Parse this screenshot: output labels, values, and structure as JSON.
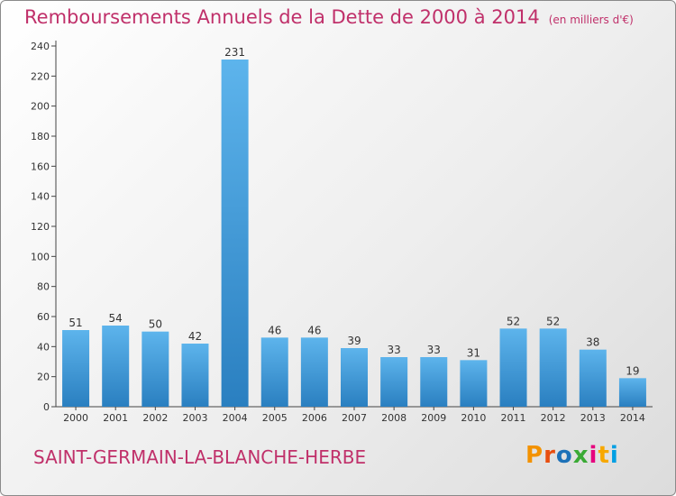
{
  "title": "Remboursements Annuels de la Dette de 2000 à 2014",
  "unit": "(en milliers d'€)",
  "commune": "SAINT-GERMAIN-LA-BLANCHE-HERBE",
  "logo": {
    "text": "Proxiti",
    "colors": [
      "#f39200",
      "#e84e0f",
      "#1d71b8",
      "#3aaa35",
      "#e6007e",
      "#f7a800",
      "#009fe3"
    ]
  },
  "colors": {
    "bar_light": "#5db4ec",
    "bar_dark": "#2a7fc0",
    "text_accent": "#c0306a"
  },
  "chart_data": {
    "type": "bar",
    "title": "Remboursements Annuels de la Dette de 2000 à 2014",
    "categories": [
      "2000",
      "2001",
      "2002",
      "2003",
      "2004",
      "2005",
      "2006",
      "2007",
      "2008",
      "2009",
      "2010",
      "2011",
      "2012",
      "2013",
      "2014"
    ],
    "values": [
      51,
      54,
      50,
      42,
      231,
      46,
      46,
      39,
      33,
      33,
      31,
      52,
      52,
      38,
      19
    ],
    "data_labels": [
      "51",
      "54",
      "50",
      "42",
      "231",
      "46",
      "46",
      "39",
      "33",
      "33",
      "31",
      "52",
      "52",
      "38",
      "19"
    ],
    "yticks": [
      0,
      20,
      40,
      60,
      80,
      100,
      120,
      140,
      160,
      180,
      200,
      220,
      240
    ],
    "ylim": [
      0,
      240
    ],
    "xlabel": "",
    "ylabel": "",
    "grid": false,
    "legend": "none"
  }
}
